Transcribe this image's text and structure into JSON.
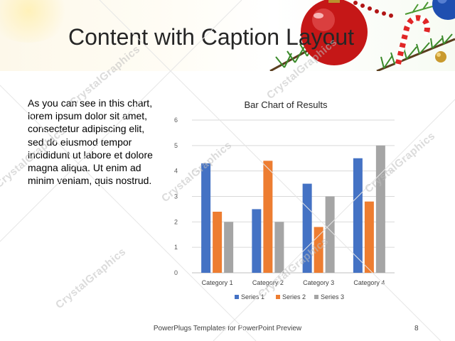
{
  "slide": {
    "title": "Content with Caption Layout",
    "body": "As you can see in this chart, lorem ipsum dolor sit amet, consectetur adipiscing elit, sed do eiusmod tempor incididunt ut labore et dolore magna aliqua. Ut enim ad minim veniam, quis nostrud.",
    "footer": "PowerPlugs Templates for PowerPoint Preview",
    "page_number": "8",
    "watermark": "CrystalGraphics"
  },
  "colors": {
    "series1": "#4472c4",
    "series2": "#ed7d31",
    "series3": "#a5a5a5",
    "ornament_red": "#d41f1f",
    "ornament_blue": "#1f4fb0",
    "pine": "#3b8a2a"
  },
  "icons": [
    "red-ornament-icon",
    "blue-ornament-icon",
    "candy-cane-icon",
    "pine-branch-icon"
  ],
  "chart_data": {
    "type": "bar",
    "title": "Bar Chart of Results",
    "categories": [
      "Category 1",
      "Category 2",
      "Category 3",
      "Category 4"
    ],
    "series": [
      {
        "name": "Series 1",
        "values": [
          4.3,
          2.5,
          3.5,
          4.5
        ]
      },
      {
        "name": "Series 2",
        "values": [
          2.4,
          4.4,
          1.8,
          2.8
        ]
      },
      {
        "name": "Series 3",
        "values": [
          2,
          2,
          3,
          5
        ]
      }
    ],
    "yticks": [
      "0",
      "1",
      "2",
      "3",
      "4",
      "5",
      "6"
    ],
    "ylim": [
      0,
      6
    ],
    "grid": true,
    "legend": "bottom"
  }
}
